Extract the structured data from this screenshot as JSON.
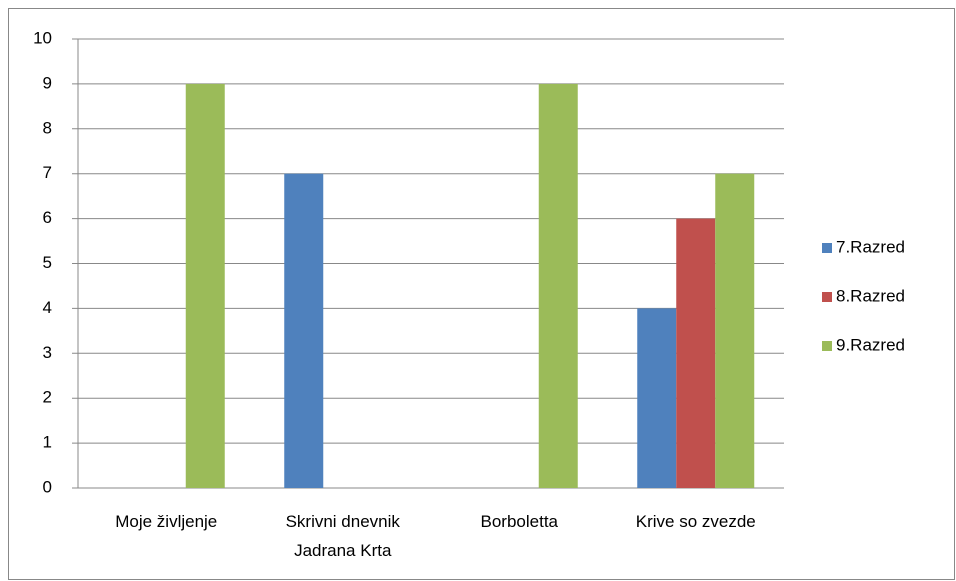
{
  "chart_data": {
    "type": "bar",
    "categories": [
      "Moje življenje",
      "Skrivni dnevnik Jadrana Krta",
      "Borboletta",
      "Krive so zvezde"
    ],
    "series": [
      {
        "name": "7.Razred",
        "color": "#4f81bd",
        "values": [
          null,
          7,
          null,
          4
        ]
      },
      {
        "name": "8.Razred",
        "color": "#c0504d",
        "values": [
          null,
          null,
          null,
          6
        ]
      },
      {
        "name": "9.Razred",
        "color": "#9bbb59",
        "values": [
          9,
          null,
          9,
          7
        ]
      }
    ],
    "ylim": [
      0,
      10
    ],
    "yticks": [
      0,
      1,
      2,
      3,
      4,
      5,
      6,
      7,
      8,
      9,
      10
    ],
    "grid": true,
    "legend": "right"
  }
}
